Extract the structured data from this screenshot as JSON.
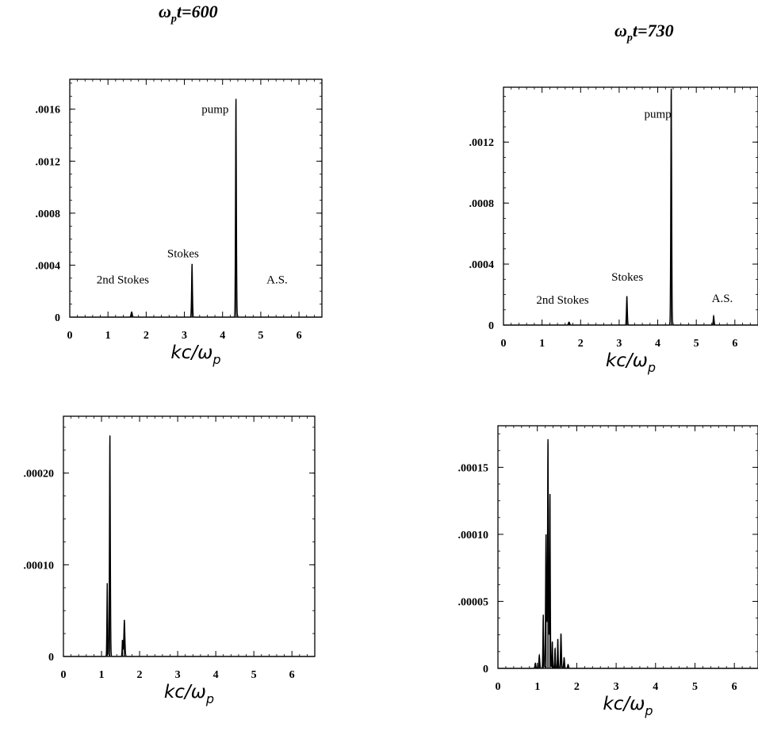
{
  "figure": {
    "title_left": {
      "symbol": "ω",
      "sub": "p",
      "rest": "t=600"
    },
    "title_right": {
      "symbol": "ω",
      "sub": "p",
      "rest": "t=730"
    }
  },
  "chart_data": [
    {
      "type": "line",
      "panel": "top-left",
      "xlabel": "kc/ωp",
      "xlim": [
        0,
        6.6
      ],
      "ylim": [
        0,
        0.00183
      ],
      "x_ticks": [
        "0",
        "1",
        "2",
        "3",
        "4",
        "5",
        "6"
      ],
      "y_ticks": [
        {
          "value": 0,
          "label": "0"
        },
        {
          "value": 0.0004,
          "label": ".0004"
        },
        {
          "value": 0.0008,
          "label": ".0008"
        },
        {
          "value": 0.0012,
          "label": ".0012"
        },
        {
          "value": 0.0016,
          "label": ".0016"
        }
      ],
      "peaks": [
        {
          "x": 1.62,
          "y": 4e-05,
          "w": 0.07
        },
        {
          "x": 3.2,
          "y": 0.00041,
          "w": 0.05
        },
        {
          "x": 4.35,
          "y": 0.00168,
          "w": 0.05
        }
      ],
      "annotations": [
        {
          "text": "pump",
          "x": 3.45,
          "y": 0.00157
        },
        {
          "text": "Stokes",
          "x": 2.55,
          "y": 0.00046
        },
        {
          "text": "2nd Stokes",
          "x": 0.7,
          "y": 0.00026
        },
        {
          "text": "A.S.",
          "x": 5.15,
          "y": 0.00026
        }
      ],
      "grid": false,
      "legend": "none"
    },
    {
      "type": "line",
      "panel": "top-right",
      "xlabel": "kc/ωp",
      "xlim": [
        0,
        6.6
      ],
      "ylim": [
        0,
        0.00156
      ],
      "x_ticks": [
        "0",
        "1",
        "2",
        "3",
        "4",
        "5",
        "6"
      ],
      "y_ticks": [
        {
          "value": 0,
          "label": "0"
        },
        {
          "value": 0.0004,
          "label": ".0004"
        },
        {
          "value": 0.0008,
          "label": ".0008"
        },
        {
          "value": 0.0012,
          "label": ".0012"
        }
      ],
      "peaks": [
        {
          "x": 1.7,
          "y": 2e-05,
          "w": 0.07
        },
        {
          "x": 3.2,
          "y": 0.00019,
          "w": 0.05
        },
        {
          "x": 4.35,
          "y": 0.00155,
          "w": 0.05
        },
        {
          "x": 5.45,
          "y": 6e-05,
          "w": 0.05
        }
      ],
      "annotations": [
        {
          "text": "pump",
          "x": 3.65,
          "y": 0.00136
        },
        {
          "text": "Stokes",
          "x": 2.8,
          "y": 0.00029
        },
        {
          "text": "2nd Stokes",
          "x": 0.85,
          "y": 0.00014
        },
        {
          "text": "A.S.",
          "x": 5.4,
          "y": 0.00015
        }
      ],
      "grid": false,
      "legend": "none"
    },
    {
      "type": "line",
      "panel": "bottom-left",
      "xlabel": "kc/ωp",
      "xlim": [
        0,
        6.6
      ],
      "ylim": [
        0,
        0.000262
      ],
      "x_ticks": [
        "0",
        "1",
        "2",
        "3",
        "4",
        "5",
        "6"
      ],
      "y_ticks": [
        {
          "value": 0,
          "label": "0"
        },
        {
          "value": 0.0001,
          "label": ".00010"
        },
        {
          "value": 0.0002,
          "label": ".00020"
        }
      ],
      "peaks": [
        {
          "x": 1.15,
          "y": 8e-05,
          "w": 0.04
        },
        {
          "x": 1.22,
          "y": 0.000241,
          "w": 0.05
        },
        {
          "x": 1.6,
          "y": 4e-05,
          "w": 0.06
        },
        {
          "x": 1.55,
          "y": 1.8e-05,
          "w": 0.04
        }
      ],
      "annotations": [],
      "grid": false,
      "legend": "none"
    },
    {
      "type": "line",
      "panel": "bottom-right",
      "xlabel": "kc/ωp",
      "xlim": [
        0,
        6.6
      ],
      "ylim": [
        0,
        0.000181
      ],
      "x_ticks": [
        "0",
        "1",
        "2",
        "3",
        "4",
        "5",
        "6"
      ],
      "y_ticks": [
        {
          "value": 0,
          "label": "0"
        },
        {
          "value": 5e-05,
          "label": ".00005"
        },
        {
          "value": 0.0001,
          "label": ".00010"
        },
        {
          "value": 0.00015,
          "label": ".00015"
        }
      ],
      "peaks": [
        {
          "x": 0.95,
          "y": 4e-06,
          "w": 0.05
        },
        {
          "x": 1.05,
          "y": 1e-05,
          "w": 0.05
        },
        {
          "x": 1.15,
          "y": 4e-05,
          "w": 0.04
        },
        {
          "x": 1.22,
          "y": 0.0001,
          "w": 0.05
        },
        {
          "x": 1.27,
          "y": 0.000171,
          "w": 0.05
        },
        {
          "x": 1.32,
          "y": 0.00013,
          "w": 0.04
        },
        {
          "x": 1.38,
          "y": 2e-05,
          "w": 0.04
        },
        {
          "x": 1.45,
          "y": 1.5e-05,
          "w": 0.04
        },
        {
          "x": 1.52,
          "y": 2.2e-05,
          "w": 0.04
        },
        {
          "x": 1.6,
          "y": 2.6e-05,
          "w": 0.05
        },
        {
          "x": 1.68,
          "y": 8e-06,
          "w": 0.05
        },
        {
          "x": 1.78,
          "y": 3e-06,
          "w": 0.05
        }
      ],
      "annotations": [],
      "grid": false,
      "legend": "none"
    }
  ]
}
